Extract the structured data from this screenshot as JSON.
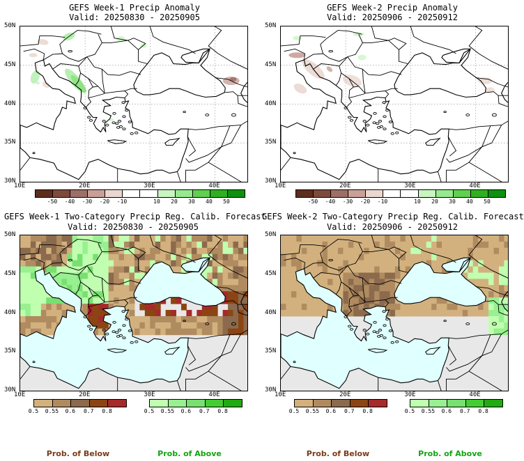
{
  "panels": {
    "p1": {
      "title": "GEFS Week-1 Precip Anomaly",
      "valid": "Valid: 20250830 - 20250905"
    },
    "p2": {
      "title": "GEFS Week-2 Precip Anomaly",
      "valid": "Valid: 20250906 - 20250912"
    },
    "p3": {
      "title": "GEFS Week-1 Two-Category Precip Reg. Calib. Forecast",
      "valid": "Valid: 20250830 - 20250905"
    },
    "p4": {
      "title": "GEFS Week-2 Two-Category Precip Reg. Calib. Forecast",
      "valid": "Valid: 20250906 - 20250912"
    }
  },
  "axes": {
    "lat_labels": [
      "50N",
      "45N",
      "40N",
      "35N",
      "30N"
    ],
    "lon_labels": [
      "10E",
      "20E",
      "30E",
      "40E"
    ]
  },
  "anomaly_colorbar": {
    "labels": [
      "-50",
      "-40",
      "-30",
      "-20",
      "-10",
      "10",
      "20",
      "30",
      "40",
      "50"
    ],
    "colors": [
      "#5c2e1e",
      "#7d4b3c",
      "#9c7066",
      "#c8a098",
      "#ead8d0",
      "#ffffff",
      "#ffffff",
      "#c8f5c0",
      "#98e890",
      "#60d050",
      "#30b020",
      "#109010"
    ]
  },
  "prob_colorbar": {
    "below_labels": [
      "0.5",
      "0.55",
      "0.6",
      "0.7",
      "0.8"
    ],
    "below_colors": [
      "#d2b17e",
      "#b08b60",
      "#8b6a4d",
      "#8b4513",
      "#a52a2a"
    ],
    "above_labels": [
      "0.5",
      "0.55",
      "0.6",
      "0.7",
      "0.8"
    ],
    "above_colors": [
      "#c0ffb0",
      "#98f090",
      "#78e070",
      "#44cc33",
      "#22aa11"
    ],
    "below_caption": "Prob. of Below",
    "above_caption": "Prob. of Above",
    "below_caption_color": "#7a3b18",
    "above_caption_color": "#11a411"
  },
  "map_colors": {
    "sea": "#e0ffff",
    "land_default": "#e8e8e8",
    "coast": "#000000"
  }
}
